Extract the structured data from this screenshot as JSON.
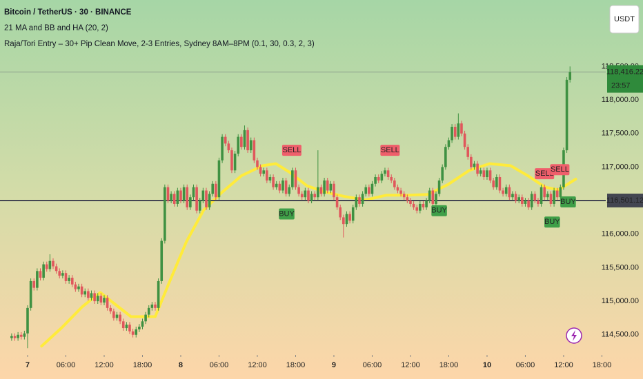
{
  "chart_data": {
    "type": "candlestick",
    "legend_lines": [
      "Bitcoin / TetherUS · 30 · BINANCE",
      "21 MA and BB and HA (20, 2)",
      "Raja/Tori Entry – 30+ Pip Clean Move, 2-3 Entries, Sydney 8AM–8PM (0.1, 30, 0.3, 2, 3)"
    ],
    "currency_button": "USDT",
    "up_color": "#3f9142",
    "down_color": "#e0575c",
    "xlim": [
      -4.324,
      90.6
    ],
    "ylim": [
      114200,
      119490
    ],
    "grid": false,
    "xticks": [
      {
        "value": 0,
        "label": "7"
      },
      {
        "value": 6,
        "label": "06:00"
      },
      {
        "value": 12,
        "label": "12:00"
      },
      {
        "value": 18,
        "label": "18:00"
      },
      {
        "value": 24,
        "label": "8"
      },
      {
        "value": 30,
        "label": "06:00"
      },
      {
        "value": 36,
        "label": "12:00"
      },
      {
        "value": 42,
        "label": "18:00"
      },
      {
        "value": 48,
        "label": "9"
      },
      {
        "value": 54,
        "label": "06:00"
      },
      {
        "value": 60,
        "label": "12:00"
      },
      {
        "value": 66,
        "label": "18:00"
      },
      {
        "value": 72,
        "label": "10"
      },
      {
        "value": 78,
        "label": "06:00"
      },
      {
        "value": 84,
        "label": "12:00"
      },
      {
        "value": 90,
        "label": "18:00"
      }
    ],
    "yticks": [
      {
        "value": 114500,
        "label": "114,500.00"
      },
      {
        "value": 115000,
        "label": "115,000.00"
      },
      {
        "value": 115500,
        "label": "115,500.00"
      },
      {
        "value": 116000,
        "label": "116,000.00"
      },
      {
        "value": 117000,
        "label": "117,000.00"
      },
      {
        "value": 117500,
        "label": "117,500.00"
      },
      {
        "value": 118000,
        "label": "118,000.00"
      },
      {
        "value": 118500,
        "label": "118,500.00"
      }
    ],
    "x": [
      -2.5,
      -2,
      -1.5,
      -1,
      -0.5,
      0,
      0.5,
      1,
      1.5,
      2,
      2.5,
      3,
      3.5,
      4,
      4.5,
      5,
      5.5,
      6,
      6.5,
      7,
      7.5,
      8,
      8.5,
      9,
      9.5,
      10,
      10.5,
      11,
      11.5,
      12,
      12.5,
      13,
      13.5,
      14,
      14.5,
      15,
      15.5,
      16,
      16.5,
      17,
      17.5,
      18,
      18.5,
      19,
      19.5,
      20,
      20.5,
      21,
      21.5,
      22,
      22.5,
      23,
      23.5,
      24,
      24.5,
      25,
      25.5,
      26,
      26.5,
      27,
      27.5,
      28,
      28.5,
      29,
      29.5,
      30,
      30.5,
      31,
      31.5,
      32,
      32.5,
      33,
      33.5,
      34,
      34.5,
      35,
      35.5,
      36,
      36.5,
      37,
      37.5,
      38,
      38.5,
      39,
      39.5,
      40,
      40.5,
      41,
      41.5,
      42,
      42.5,
      43,
      43.5,
      44,
      44.5,
      45,
      45.5,
      46,
      46.5,
      47,
      47.5,
      48,
      48.5,
      49,
      49.5,
      50,
      50.5,
      51,
      51.5,
      52,
      52.5,
      53,
      53.5,
      54,
      54.5,
      55,
      55.5,
      56,
      56.5,
      57,
      57.5,
      58,
      58.5,
      59,
      59.5,
      60,
      60.5,
      61,
      61.5,
      62,
      62.5,
      63,
      63.5,
      64,
      64.5,
      65,
      65.5,
      66,
      66.5,
      67,
      67.5,
      68,
      68.5,
      69,
      69.5,
      70,
      70.5,
      71,
      71.5,
      72,
      72.5,
      73,
      73.5,
      74,
      74.5,
      75,
      75.5,
      76,
      76.5,
      77,
      77.5,
      78,
      78.5,
      79,
      79.5,
      80,
      80.5,
      81,
      81.5,
      82,
      82.5,
      83,
      83.5,
      84,
      84.5,
      85
    ],
    "open": [
      114450,
      114480,
      114450,
      114500,
      114470,
      114520,
      114900,
      115300,
      115200,
      115450,
      115350,
      115550,
      115480,
      115600,
      115520,
      115450,
      115380,
      115420,
      115300,
      115350,
      115250,
      115180,
      115220,
      115100,
      115150,
      115050,
      115120,
      115000,
      115080,
      114980,
      115050,
      114900,
      114850,
      114750,
      114800,
      114700,
      114600,
      114650,
      114550,
      114500,
      114580,
      114620,
      114700,
      114800,
      114900,
      114950,
      114900,
      115300,
      115900,
      116700,
      116500,
      116600,
      116450,
      116650,
      116500,
      116700,
      116400,
      116550,
      116700,
      116350,
      116500,
      116650,
      116400,
      116600,
      116750,
      116550,
      117100,
      117450,
      117350,
      117250,
      116950,
      117200,
      117450,
      117300,
      117550,
      117250,
      117400,
      117100,
      117000,
      116900,
      116950,
      116800,
      116850,
      116700,
      116750,
      116650,
      116800,
      116600,
      116700,
      116950,
      116700,
      116600,
      116550,
      116650,
      116500,
      116600,
      116550,
      116700,
      116600,
      116800,
      116650,
      116750,
      116550,
      116400,
      116250,
      116150,
      116300,
      116200,
      116400,
      116550,
      116450,
      116600,
      116700,
      116600,
      116750,
      116850,
      116800,
      116900,
      116950,
      116850,
      116800,
      116700,
      116650,
      116600,
      116550,
      116500,
      116450,
      116400,
      116350,
      116450,
      116400,
      116500,
      116650,
      116450,
      116600,
      116800,
      117000,
      117300,
      117400,
      117600,
      117450,
      117650,
      117500,
      117300,
      117150,
      117000,
      117050,
      116900,
      116950,
      116850,
      116950,
      116800,
      116700,
      116850,
      116650,
      116600,
      116700,
      116550,
      116600,
      116500,
      116550,
      116450,
      116500,
      116400,
      116600,
      116500,
      116450,
      116700,
      116550,
      116600,
      116450,
      116650,
      116550,
      116700,
      117250,
      118300
    ],
    "high": [
      114520,
      114520,
      114540,
      114540,
      114560,
      114940,
      115340,
      115340,
      115490,
      115490,
      115590,
      115590,
      115700,
      115640,
      115560,
      115490,
      115460,
      115460,
      115390,
      115390,
      115290,
      115260,
      115260,
      115190,
      115190,
      115160,
      115160,
      115120,
      115120,
      115090,
      115090,
      114940,
      114890,
      114840,
      114840,
      114740,
      114690,
      114690,
      114590,
      114620,
      114660,
      114740,
      114840,
      114940,
      114990,
      114990,
      115340,
      115940,
      116740,
      116740,
      116640,
      116640,
      116690,
      116690,
      116740,
      116740,
      116590,
      116740,
      116740,
      116540,
      116690,
      116690,
      116640,
      116790,
      116790,
      117140,
      117490,
      117490,
      117390,
      117290,
      117240,
      117490,
      117490,
      117620,
      117590,
      117440,
      117440,
      117140,
      117040,
      116990,
      116990,
      116890,
      116890,
      116790,
      116790,
      116840,
      116840,
      116740,
      116990,
      116990,
      116740,
      116640,
      116690,
      116690,
      116640,
      116640,
      117250,
      116740,
      116840,
      116840,
      116790,
      116790,
      116590,
      116440,
      116290,
      116340,
      116340,
      116440,
      116590,
      116590,
      116640,
      116740,
      116740,
      116790,
      116890,
      116890,
      116940,
      116990,
      116990,
      116890,
      116840,
      116740,
      116690,
      116640,
      116590,
      116540,
      116490,
      116440,
      116490,
      116490,
      116540,
      116690,
      116690,
      116640,
      116840,
      117040,
      117340,
      117440,
      117640,
      117640,
      117800,
      117690,
      117540,
      117340,
      117190,
      117090,
      117090,
      116990,
      116990,
      116990,
      116990,
      116840,
      116890,
      116890,
      116690,
      116740,
      116740,
      116640,
      116640,
      116590,
      116590,
      116540,
      116540,
      116640,
      116640,
      116540,
      116740,
      116740,
      116640,
      116640,
      116690,
      116690,
      116740,
      117290,
      118340,
      118500
    ],
    "low": [
      114410,
      114410,
      114410,
      114430,
      114430,
      114300,
      114860,
      115160,
      115160,
      115310,
      115310,
      115440,
      115440,
      115480,
      115410,
      115340,
      115340,
      115260,
      115260,
      115210,
      115140,
      115140,
      115060,
      115060,
      115010,
      115010,
      114960,
      114960,
      114940,
      114940,
      114860,
      114810,
      114710,
      114710,
      114660,
      114560,
      114560,
      114510,
      114460,
      114460,
      114540,
      114580,
      114660,
      114760,
      114860,
      114860,
      114860,
      115260,
      115860,
      116460,
      116460,
      116410,
      116410,
      116460,
      116460,
      116360,
      116360,
      116510,
      116310,
      116310,
      116460,
      116360,
      116360,
      116560,
      116510,
      116510,
      117060,
      117310,
      117210,
      116910,
      116910,
      117160,
      117260,
      117260,
      117210,
      117210,
      117060,
      116960,
      116860,
      116860,
      116760,
      116760,
      116660,
      116660,
      116610,
      116610,
      116560,
      116560,
      116660,
      116660,
      116560,
      116510,
      116510,
      116460,
      116460,
      116510,
      116510,
      116560,
      116560,
      116610,
      116610,
      116510,
      116360,
      116210,
      115950,
      116110,
      116160,
      116160,
      116360,
      116410,
      116410,
      116560,
      116560,
      116560,
      116710,
      116760,
      116760,
      116860,
      116810,
      116760,
      116660,
      116610,
      116560,
      116510,
      116460,
      116410,
      116360,
      116310,
      116310,
      116360,
      116360,
      116460,
      116410,
      116410,
      116560,
      116760,
      116960,
      117260,
      117360,
      117410,
      117410,
      117460,
      117260,
      117110,
      116960,
      116960,
      116860,
      116860,
      116810,
      116810,
      116760,
      116660,
      116660,
      116610,
      116560,
      116560,
      116510,
      116510,
      116460,
      116460,
      116410,
      116410,
      116360,
      116360,
      116460,
      116410,
      116410,
      116510,
      116510,
      116410,
      116410,
      116510,
      116510,
      116660,
      117210,
      118260
    ],
    "close": [
      114480,
      114450,
      114500,
      114470,
      114520,
      114900,
      115300,
      115200,
      115450,
      115350,
      115550,
      115480,
      115600,
      115520,
      115450,
      115380,
      115420,
      115300,
      115350,
      115250,
      115180,
      115220,
      115100,
      115150,
      115050,
      115120,
      115000,
      115080,
      114980,
      115050,
      114900,
      114850,
      114750,
      114800,
      114700,
      114600,
      114650,
      114550,
      114500,
      114580,
      114620,
      114700,
      114800,
      114900,
      114950,
      114900,
      115300,
      115900,
      116700,
      116500,
      116600,
      116450,
      116650,
      116500,
      116700,
      116400,
      116550,
      116700,
      116350,
      116500,
      116650,
      116400,
      116600,
      116750,
      116550,
      117100,
      117450,
      117350,
      117250,
      116950,
      117200,
      117450,
      117300,
      117550,
      117250,
      117400,
      117100,
      117000,
      116900,
      116950,
      116800,
      116850,
      116700,
      116750,
      116650,
      116800,
      116600,
      116700,
      116950,
      116700,
      116600,
      116550,
      116650,
      116500,
      116600,
      116550,
      116700,
      116600,
      116800,
      116650,
      116750,
      116550,
      116400,
      116250,
      116150,
      116300,
      116200,
      116400,
      116550,
      116450,
      116600,
      116700,
      116600,
      116750,
      116850,
      116800,
      116900,
      116950,
      116850,
      116800,
      116700,
      116650,
      116600,
      116550,
      116500,
      116450,
      116400,
      116350,
      116450,
      116400,
      116500,
      116650,
      116450,
      116600,
      116800,
      117000,
      117300,
      117400,
      117600,
      117450,
      117650,
      117500,
      117300,
      117150,
      117000,
      117050,
      116900,
      116950,
      116850,
      116950,
      116800,
      116700,
      116850,
      116650,
      116600,
      116700,
      116550,
      116600,
      116500,
      116550,
      116450,
      116500,
      116400,
      116600,
      116500,
      116450,
      116700,
      116550,
      116600,
      116450,
      116650,
      116550,
      116700,
      117250,
      118300,
      118416.22
    ],
    "ma": {
      "color": "#ffeb3b",
      "x": [
        2.2,
        5.4,
        8.6,
        11.4,
        13.5,
        16.2,
        20,
        22.2,
        24.9,
        27.6,
        30.3,
        33.5,
        36.8,
        38.9,
        41.1,
        43.8,
        46.5,
        49.7,
        53,
        56.2,
        59.5,
        62.7,
        65.9,
        69.2,
        72.4,
        75.7,
        78.4,
        81.1,
        83.2,
        85.9
      ],
      "values": [
        114330,
        114610,
        114920,
        115130,
        114970,
        114770,
        114770,
        115280,
        115890,
        116360,
        116610,
        116870,
        117020,
        117050,
        116920,
        116720,
        116630,
        116560,
        116510,
        116580,
        116580,
        116590,
        116740,
        116950,
        117050,
        117020,
        116870,
        116700,
        116660,
        116820
      ]
    },
    "signals": [
      {
        "label": "SELL",
        "x": 41.4,
        "y": 117250,
        "color": "#ef5f6b"
      },
      {
        "label": "SELL",
        "x": 56.8,
        "y": 117250,
        "color": "#ef5f6b"
      },
      {
        "label": "SELL",
        "x": 81,
        "y": 116900,
        "color": "#ef5f6b"
      },
      {
        "label": "SELL",
        "x": 83.4,
        "y": 116960,
        "color": "#ef5f6b"
      },
      {
        "label": "BUY",
        "x": 40.6,
        "y": 116300,
        "color": "#3f9f48"
      },
      {
        "label": "BUY",
        "x": 64.5,
        "y": 116350,
        "color": "#3f9f48"
      },
      {
        "label": "BUY",
        "x": 82.2,
        "y": 116180,
        "color": "#3f9f48"
      },
      {
        "label": "BUY",
        "x": 84.7,
        "y": 116480,
        "color": "#3f9f48"
      }
    ],
    "price_line": {
      "value": 116501.12,
      "label": "116,501.12",
      "color": "#434651"
    },
    "last_price": {
      "value": 118416.22,
      "label": "118,416.22",
      "countdown": "23:57",
      "color": "#2f8a3b"
    }
  }
}
